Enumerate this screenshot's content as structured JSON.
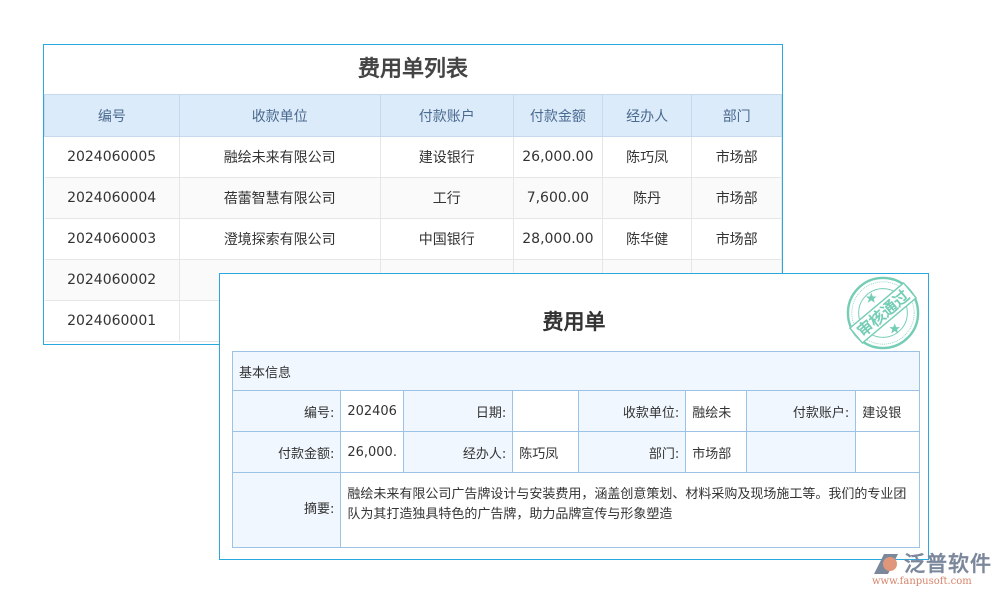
{
  "list": {
    "title": "费用单列表",
    "headers": [
      "编号",
      "收款单位",
      "付款账户",
      "付款金额",
      "经办人",
      "部门"
    ],
    "rows": [
      [
        "2024060005",
        "融绘未来有限公司",
        "建设银行",
        "26,000.00",
        "陈巧凤",
        "市场部"
      ],
      [
        "2024060004",
        "蓓蕾智慧有限公司",
        "工行",
        "7,600.00",
        "陈丹",
        "市场部"
      ],
      [
        "2024060003",
        "澄境探索有限公司",
        "中国银行",
        "28,000.00",
        "陈华健",
        "市场部"
      ],
      [
        "2024060002",
        "",
        "",
        "",
        "",
        ""
      ],
      [
        "2024060001",
        "",
        "",
        "",
        "",
        ""
      ]
    ]
  },
  "detail": {
    "title": "费用单",
    "section": "基本信息",
    "labels": {
      "no": "编号:",
      "date": "日期:",
      "payee": "收款单位:",
      "account": "付款账户:",
      "amount": "付款金额:",
      "handler": "经办人:",
      "dept": "部门:",
      "summary": "摘要:"
    },
    "values": {
      "no": "202406",
      "date": "",
      "payee": "融绘未",
      "account": "建设银",
      "amount": "26,000.",
      "handler": "陈巧凤",
      "dept": "市场部",
      "summary": "融绘未来有限公司广告牌设计与安装费用，涵盖创意策划、材料采购及现场施工等。我们的专业团队为其打造独具特色的广告牌，助力品牌宣传与形象塑造"
    }
  },
  "stamp": {
    "text": "审核通过",
    "color": "#3cb896"
  },
  "logo": {
    "name": "泛普软件",
    "url": "www.fanpusoft.com"
  }
}
